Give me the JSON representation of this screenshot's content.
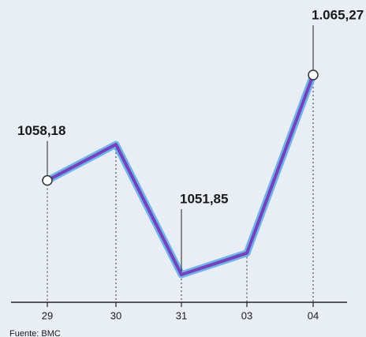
{
  "chart_data": {
    "type": "line",
    "categories": [
      "29",
      "30",
      "31",
      "03",
      "04"
    ],
    "values": [
      1058.18,
      1060.6,
      1051.85,
      1053.3,
      1065.27
    ],
    "value_labels": [
      "1058,18",
      null,
      "1051,85",
      null,
      "1.065,27"
    ],
    "color": "#7a3fbf",
    "glow_color": "#4aa8e8",
    "source": "Fuente: BMC"
  }
}
